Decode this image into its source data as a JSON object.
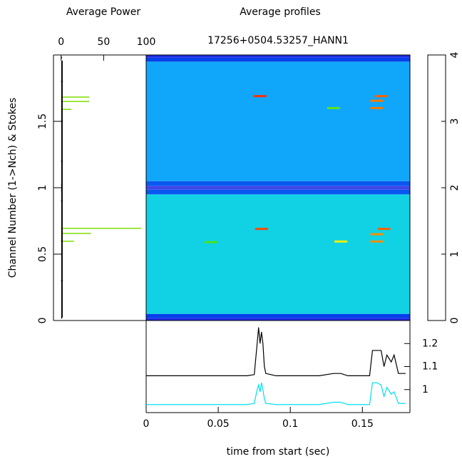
{
  "chart_data": [
    {
      "type": "spectrum",
      "title": "Average Power",
      "ylabel": "Channel Number (1->Nch) & Stokes",
      "xlim": [
        -9,
        100
      ],
      "xticks": [
        0,
        50,
        100
      ],
      "ylim": [
        0,
        2
      ],
      "yticks": [
        0,
        0.5,
        1,
        1.5
      ],
      "series": [
        {
          "color": "#000000",
          "y": [
            0.02,
            0.3,
            0.6,
            0.9,
            0.98,
            1.02,
            1.2,
            1.5,
            1.8,
            1.98
          ],
          "values": [
            1,
            2,
            2,
            2,
            1,
            1,
            2,
            2,
            2,
            1
          ]
        },
        {
          "color": "#7fdd00",
          "y": [
            1.683,
            1.65,
            1.59,
            0.694,
            0.656,
            0.597
          ],
          "values": [
            33,
            33,
            12,
            94,
            35,
            15
          ]
        }
      ]
    },
    {
      "type": "heatmap",
      "title": "Average profiles",
      "subtitle": "17256+0504.53257_HANN1",
      "xlim": [
        0,
        0.183
      ],
      "ylim": [
        0,
        2
      ],
      "row_edges": [
        0,
        0.02,
        0.05,
        0.95,
        0.985,
        1.015,
        1.05,
        1.95,
        1.98,
        2
      ],
      "row_values": [
        0.35,
        0.6,
        1.35,
        0.7,
        0.3,
        0.7,
        1.05,
        0.6,
        0.35
      ],
      "spots": {
        "x": [
          0.079,
          0.163,
          0.16,
          0.16,
          0.13,
          0.08,
          0.165,
          0.16,
          0.16,
          0.135,
          0.045
        ],
        "y": [
          1.69,
          1.69,
          1.655,
          1.6,
          1.6,
          0.69,
          0.69,
          0.65,
          0.595,
          0.595,
          0.59
        ],
        "values": [
          3.8,
          3.6,
          3.5,
          3.5,
          2.3,
          3.7,
          3.6,
          3.4,
          3.4,
          3,
          2.2
        ]
      },
      "colorbar_lim": [
        0,
        4
      ],
      "colorbar_ticks": [
        0,
        1,
        2,
        3,
        4
      ],
      "colormap_stops": [
        0,
        0.4,
        1,
        1.5,
        2,
        3,
        4
      ],
      "colormap": [
        "#f4f0ff",
        "#0010e0",
        "#10a0ff",
        "#10e8d8",
        "#20e020",
        "#f0f000",
        "#ff0000"
      ]
    },
    {
      "type": "line",
      "xlabel": "time from start (sec)",
      "xlim": [
        0,
        0.183
      ],
      "xticks": [
        0,
        0.05,
        0.1,
        0.15
      ],
      "ylim": [
        0.9,
        1.3
      ],
      "yticks": [
        1,
        1.1,
        1.2
      ],
      "x": [
        0,
        0.02,
        0.05,
        0.07,
        0.075,
        0.077,
        0.078,
        0.079,
        0.08,
        0.081,
        0.082,
        0.083,
        0.09,
        0.12,
        0.13,
        0.135,
        0.14,
        0.155,
        0.157,
        0.16,
        0.163,
        0.165,
        0.167,
        0.17,
        0.172,
        0.175,
        0.18
      ],
      "series": [
        {
          "color": "#000000",
          "values": [
            1.06,
            1.06,
            1.06,
            1.06,
            1.065,
            1.2,
            1.27,
            1.2,
            1.25,
            1.2,
            1.1,
            1.07,
            1.06,
            1.06,
            1.07,
            1.07,
            1.06,
            1.06,
            1.17,
            1.17,
            1.17,
            1.1,
            1.15,
            1.12,
            1.15,
            1.07,
            1.07
          ]
        },
        {
          "color": "#00e0f0",
          "values": [
            0.935,
            0.935,
            0.935,
            0.935,
            0.94,
            1.0,
            1.02,
            0.99,
            1.03,
            1.0,
            0.96,
            0.94,
            0.935,
            0.935,
            0.945,
            0.945,
            0.935,
            0.935,
            1.03,
            1.03,
            1.02,
            0.97,
            1.01,
            0.98,
            0.99,
            0.94,
            0.94
          ]
        }
      ]
    }
  ]
}
